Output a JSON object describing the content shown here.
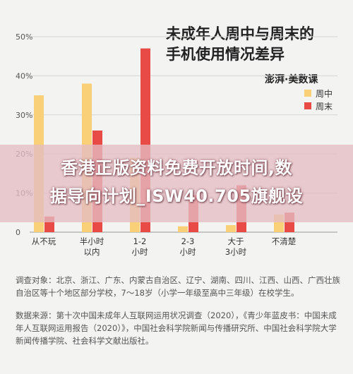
{
  "header": {
    "title": "未成年人周中与周末的\n手机使用情况差异",
    "brand": "澎湃·美数课"
  },
  "chart_data": {
    "type": "bar",
    "categories": [
      "从不玩",
      "半小时\n以内",
      "1-2\n小时",
      "2-3\n小时",
      "大于\n3小时",
      "不清楚"
    ],
    "series": [
      {
        "name": "周中",
        "color": "#f9cf78",
        "values": [
          35,
          38,
          19,
          1.5,
          1.8,
          4.5
        ]
      },
      {
        "name": "周末",
        "color": "#e84b45",
        "values": [
          4,
          26,
          47,
          9.5,
          12,
          5
        ]
      }
    ],
    "yticks": [
      "0",
      "10%",
      "20%",
      "30%",
      "40%",
      "50%"
    ],
    "ylim": [
      0,
      50
    ],
    "grid": true,
    "legend": "top-right"
  },
  "notes": {
    "line1": "调查对象：北京、浙江、广东、内蒙古自治区、辽宁、湖南、四川、江西、山西、广西壮族自治区等十个地区部分学校，7～18岁（小学一年级至高中三年级）在校学生。",
    "line2": "数据来源：第十次中国未成年人互联网运用状况调查（2020），《青少年蓝皮书：中国未成年人互联网运用报告（2020）》，中国社会科学院新闻与传播研究所、中国社会科学院大学新闻传播学院、社会科学文献出版社。"
  },
  "banner": {
    "text": "香港正版资料免费开放时间,数\n据导向计划_ISW40.705旗舰设"
  }
}
